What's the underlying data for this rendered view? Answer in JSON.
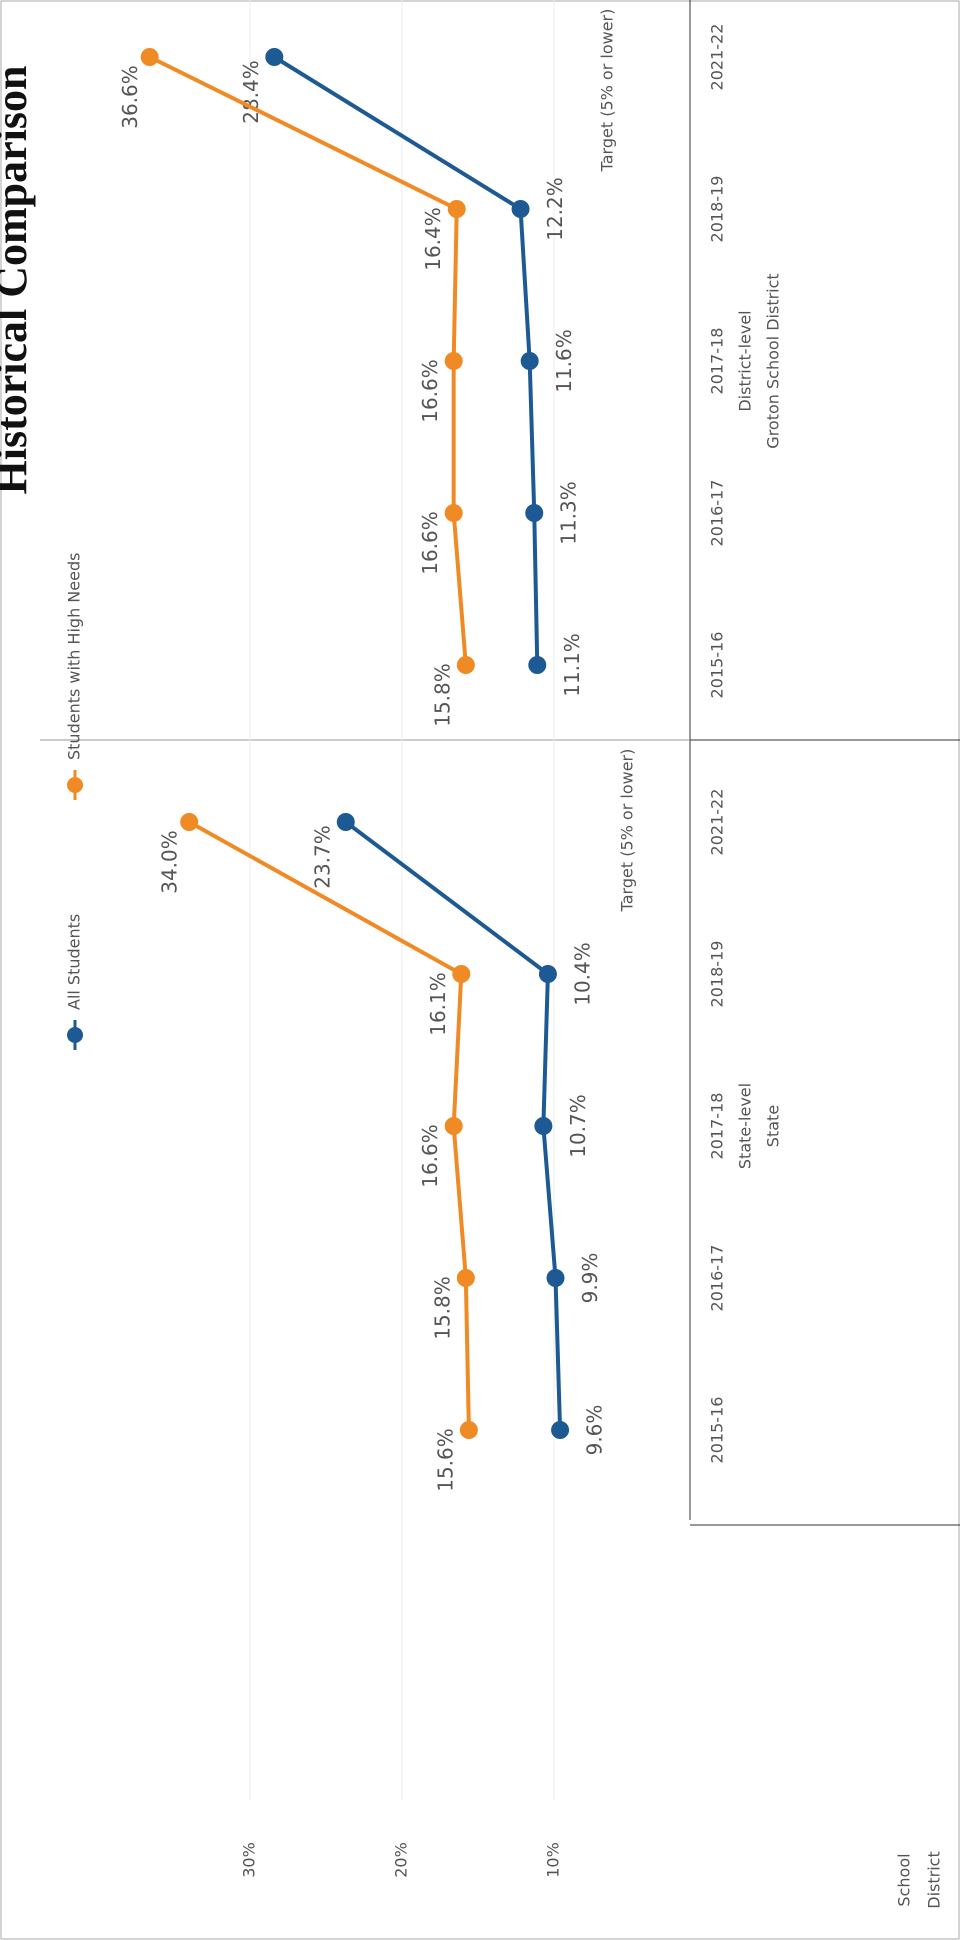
{
  "chart_data": [
    {
      "type": "line",
      "title": "Historical Comparison",
      "categories": [
        "2015-16",
        "2016-17",
        "2017-18",
        "2018-19",
        "2021-22"
      ],
      "group_label": "State-level",
      "group_sublabel": "State",
      "target": "Target (5% or lower)",
      "footer": [
        "School",
        "District"
      ],
      "ylim": [
        0,
        40
      ],
      "yticks": [
        {
          "value": 10,
          "label": "10%"
        },
        {
          "value": 20,
          "label": "20%"
        },
        {
          "value": 30,
          "label": "30%"
        }
      ],
      "grid": true,
      "series": [
        {
          "name": "All Students",
          "color": "#1d5a94",
          "values": [
            9.6,
            9.9,
            10.7,
            10.4,
            23.7
          ],
          "value_labels": [
            "9.6%",
            "9.9%",
            "10.7%",
            "10.4%",
            "23.7%"
          ]
        },
        {
          "name": "Students with High Needs",
          "color": "#f08a24",
          "values": [
            15.6,
            15.8,
            16.6,
            16.1,
            34.0
          ],
          "value_labels": [
            "15.6%",
            "15.8%",
            "16.6%",
            "16.1%",
            "34.0%"
          ]
        }
      ]
    },
    {
      "type": "line",
      "categories": [
        "2015-16",
        "2016-17",
        "2017-18",
        "2018-19",
        "2021-22"
      ],
      "group_label": "District-level",
      "group_sublabel": "Groton School District",
      "target": "Target (5% or lower)",
      "ylim": [
        0,
        40
      ],
      "series": [
        {
          "color": "#1d5a94",
          "values": [
            11.1,
            11.3,
            11.6,
            12.2,
            28.4
          ],
          "value_labels": [
            "11.1%",
            "11.3%",
            "11.6%",
            "12.2%",
            "28.4%"
          ]
        },
        {
          "color": "#f08a24",
          "values": [
            15.8,
            16.6,
            16.6,
            16.4,
            36.6
          ],
          "value_labels": [
            "15.8%",
            "16.6%",
            "16.6%",
            "16.4%",
            "36.6%"
          ]
        }
      ]
    }
  ]
}
